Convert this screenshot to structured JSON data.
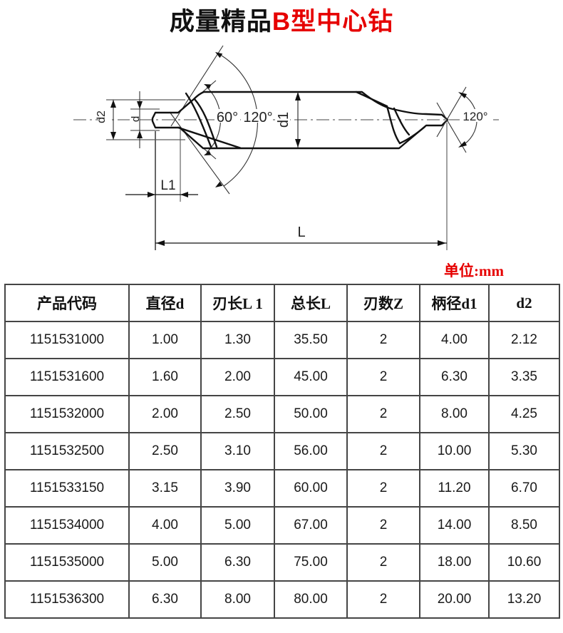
{
  "title": {
    "prefix": "成量精品",
    "highlight": "B型中心钻"
  },
  "unit_label": "单位:mm",
  "diagram": {
    "labels": {
      "d2": "d2",
      "d": "d",
      "angle60": "60°",
      "angle120_left": "120°",
      "d1": "d1",
      "angle120_right": "120°",
      "l1": "L1",
      "l": "L"
    }
  },
  "table": {
    "headers": [
      "产品代码",
      "直径d",
      "刃长L 1",
      "总长L",
      "刃数Z",
      "柄径d1",
      "d2"
    ],
    "rows": [
      [
        "1151531000",
        "1.00",
        "1.30",
        "35.50",
        "2",
        "4.00",
        "2.12"
      ],
      [
        "1151531600",
        "1.60",
        "2.00",
        "45.00",
        "2",
        "6.30",
        "3.35"
      ],
      [
        "1151532000",
        "2.00",
        "2.50",
        "50.00",
        "2",
        "8.00",
        "4.25"
      ],
      [
        "1151532500",
        "2.50",
        "3.10",
        "56.00",
        "2",
        "10.00",
        "5.30"
      ],
      [
        "1151533150",
        "3.15",
        "3.90",
        "60.00",
        "2",
        "11.20",
        "6.70"
      ],
      [
        "1151534000",
        "4.00",
        "5.00",
        "67.00",
        "2",
        "14.00",
        "8.50"
      ],
      [
        "1151535000",
        "5.00",
        "6.30",
        "75.00",
        "2",
        "18.00",
        "10.60"
      ],
      [
        "1151536300",
        "6.30",
        "8.00",
        "80.00",
        "2",
        "20.00",
        "13.20"
      ]
    ]
  }
}
